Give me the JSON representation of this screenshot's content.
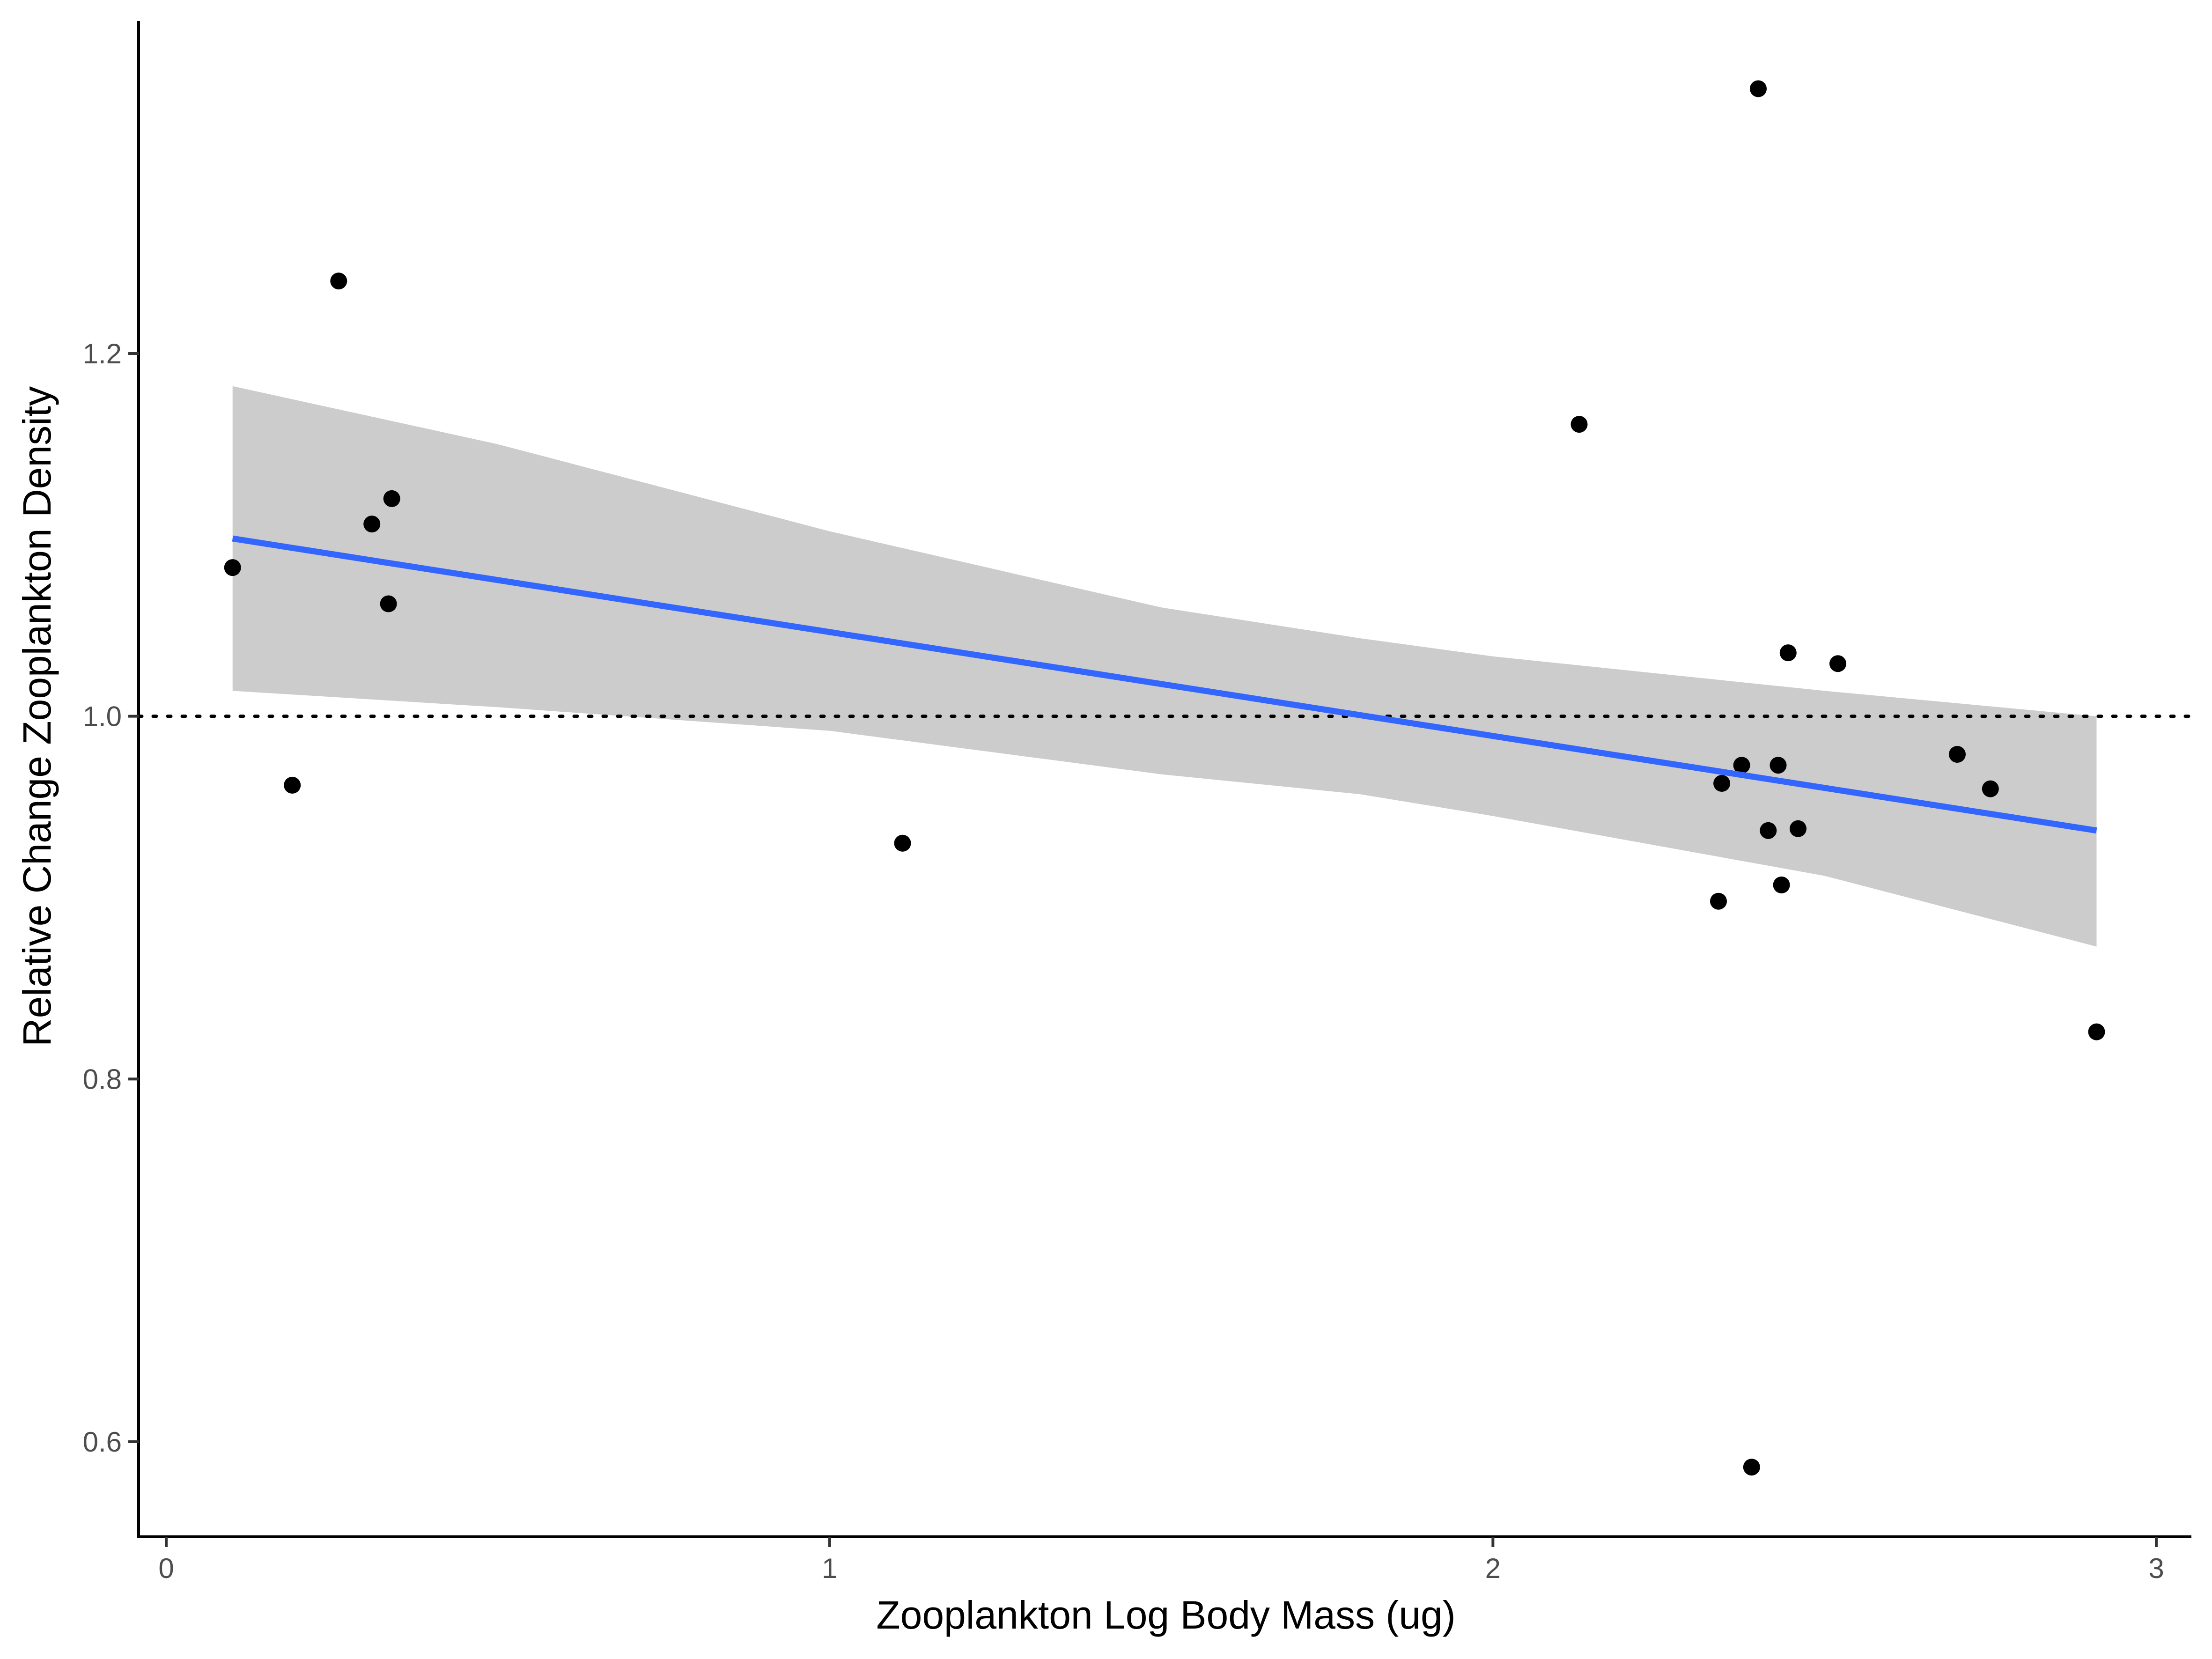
{
  "chart_data": {
    "type": "scatter",
    "title": "",
    "xlabel": "Zooplankton Log Body Mass (ug)",
    "ylabel": "Relative Change Zooplankton Density",
    "xlim": [
      -0.04,
      3.05
    ],
    "ylim": [
      0.535,
      1.37
    ],
    "x_ticks": [
      0,
      1,
      2,
      3
    ],
    "x_tick_labels": [
      "0",
      "1",
      "2",
      "3"
    ],
    "y_ticks": [
      0.6,
      0.8,
      1.0,
      1.2
    ],
    "y_tick_labels": [
      "0.6",
      "0.8",
      "1.0",
      "1.2"
    ],
    "grid": false,
    "legend": "none",
    "reference_line": {
      "y": 1.0,
      "style": "dotted"
    },
    "points": [
      {
        "x": 0.1,
        "y": 1.082
      },
      {
        "x": 0.19,
        "y": 0.962
      },
      {
        "x": 0.26,
        "y": 1.24
      },
      {
        "x": 0.31,
        "y": 1.106
      },
      {
        "x": 0.335,
        "y": 1.062
      },
      {
        "x": 0.34,
        "y": 1.12
      },
      {
        "x": 1.11,
        "y": 0.93
      },
      {
        "x": 2.13,
        "y": 1.161
      },
      {
        "x": 2.34,
        "y": 0.898
      },
      {
        "x": 2.345,
        "y": 0.963
      },
      {
        "x": 2.375,
        "y": 0.973
      },
      {
        "x": 2.39,
        "y": 0.586
      },
      {
        "x": 2.4,
        "y": 1.346
      },
      {
        "x": 2.415,
        "y": 0.937
      },
      {
        "x": 2.43,
        "y": 0.973
      },
      {
        "x": 2.435,
        "y": 0.907
      },
      {
        "x": 2.445,
        "y": 1.035
      },
      {
        "x": 2.46,
        "y": 0.938
      },
      {
        "x": 2.52,
        "y": 1.029
      },
      {
        "x": 2.7,
        "y": 0.979
      },
      {
        "x": 2.75,
        "y": 0.96
      },
      {
        "x": 2.91,
        "y": 0.826
      }
    ],
    "fit_line": {
      "x": [
        0.1,
        2.91
      ],
      "y": [
        1.098,
        0.937
      ],
      "color": "#3366ff"
    },
    "confidence_band": {
      "x": [
        0.1,
        0.5,
        1.0,
        1.5,
        1.8,
        2.0,
        2.5,
        2.91
      ],
      "upper": [
        1.182,
        1.15,
        1.102,
        1.06,
        1.043,
        1.033,
        1.014,
        1.0
      ],
      "lower": [
        1.014,
        1.005,
        0.992,
        0.968,
        0.957,
        0.945,
        0.912,
        0.873
      ],
      "color": "#cccccc"
    },
    "point_color": "#000000"
  }
}
